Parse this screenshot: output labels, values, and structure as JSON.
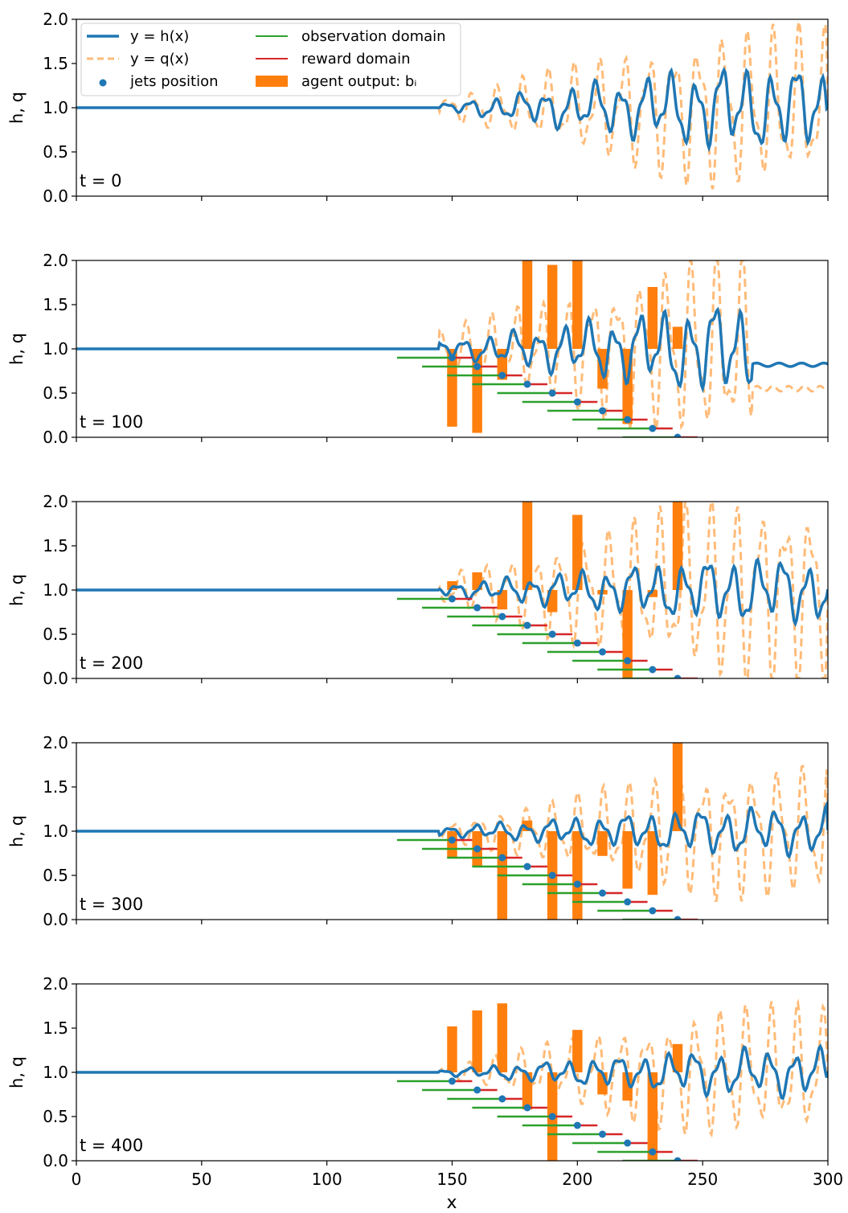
{
  "chart_data": {
    "type": "line",
    "xlabel": "x",
    "ylabel": "h, q",
    "xlim": [
      0,
      300
    ],
    "ylim": [
      0,
      2
    ],
    "xticks": [
      "0",
      "50",
      "100",
      "150",
      "200",
      "250",
      "300"
    ],
    "yticks": [
      "0.0",
      "0.5",
      "1.0",
      "1.5",
      "2.0"
    ],
    "grid": false,
    "legend_placement": "top-left of first panel",
    "legend": [
      {
        "label": "y = h(x)",
        "kind": "line-solid",
        "color": "#1f77b4"
      },
      {
        "label": "y = q(x)",
        "kind": "line-dashed",
        "color": "#ffbb78"
      },
      {
        "label": "jets position",
        "kind": "marker",
        "color": "#1f77b4"
      },
      {
        "label": "observation domain",
        "kind": "line-solid",
        "color": "#2ca02c"
      },
      {
        "label": "reward domain",
        "kind": "line-solid",
        "color": "#d62728"
      },
      {
        "label": "agent output: bᵢ",
        "kind": "patch",
        "color": "#ff7f0e"
      }
    ],
    "colors": {
      "h": "#1f77b4",
      "q": "#ffbb78",
      "jets": "#1f77b4",
      "observation": "#2ca02c",
      "reward": "#d62728",
      "agent": "#ff7f0e"
    },
    "jets": {
      "x": [
        150,
        160,
        170,
        180,
        190,
        200,
        210,
        220,
        230,
        240
      ],
      "y": [
        0.9,
        0.8,
        0.7,
        0.6,
        0.5,
        0.4,
        0.3,
        0.2,
        0.1,
        0.0
      ],
      "observation_domain": [
        -22,
        0
      ],
      "reward_domain": [
        0,
        8
      ]
    },
    "panels": [
      {
        "label": "t = 0",
        "show_jets": false,
        "h_onset": 145,
        "h_amp": [
          0.04,
          0.45
        ],
        "q_amp": [
          0.1,
          0.85
        ],
        "tail": {
          "start": 300,
          "h": 1.0,
          "q": 1.0
        },
        "agent_output": []
      },
      {
        "label": "t = 100",
        "show_jets": true,
        "h_onset": 145,
        "h_amp": [
          0.08,
          0.5
        ],
        "q_amp": [
          0.2,
          1.05
        ],
        "tail": {
          "start": 270,
          "h": 0.82,
          "q": 0.55
        },
        "agent_output": [
          -0.88,
          -0.95,
          -0.35,
          1.05,
          0.95,
          1.0,
          -0.45,
          -0.85,
          0.7,
          0.25
        ]
      },
      {
        "label": "t = 200",
        "show_jets": true,
        "h_onset": 145,
        "h_amp": [
          0.06,
          0.35
        ],
        "q_amp": [
          0.15,
          1.0
        ],
        "tail": {
          "start": 300,
          "h": 1.0,
          "q": 1.0
        },
        "agent_output": [
          0.1,
          0.2,
          -0.22,
          1.0,
          -0.25,
          0.85,
          -0.05,
          -1.0,
          -0.08,
          1.0
        ]
      },
      {
        "label": "t = 300",
        "show_jets": true,
        "h_onset": 145,
        "h_amp": [
          0.05,
          0.25
        ],
        "q_amp": [
          0.08,
          0.7
        ],
        "tail": {
          "start": 300,
          "h": 1.0,
          "q": 1.0
        },
        "agent_output": [
          -0.3,
          -0.4,
          -1.0,
          0.12,
          -1.0,
          -1.0,
          -0.28,
          -0.65,
          -0.72,
          1.0
        ]
      },
      {
        "label": "t = 400",
        "show_jets": true,
        "h_onset": 145,
        "h_amp": [
          0.03,
          0.25
        ],
        "q_amp": [
          0.05,
          0.7
        ],
        "tail": {
          "start": 300,
          "h": 1.0,
          "q": 1.0
        },
        "agent_output": [
          0.52,
          0.7,
          0.78,
          -0.42,
          -1.0,
          0.48,
          -0.25,
          -0.32,
          -1.0,
          0.32
        ]
      }
    ]
  }
}
